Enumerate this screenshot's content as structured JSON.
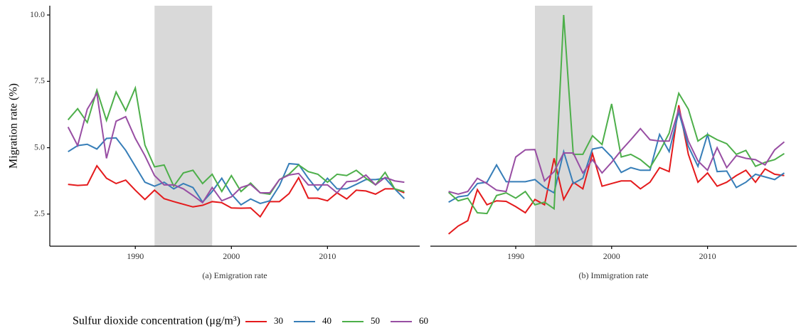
{
  "chart_data": [
    {
      "type": "line",
      "x_label": "(a) Emigration rate",
      "y_label": "Migration rate (%)",
      "legend_title": "Sulfur dioxide concentration (μg/m³)",
      "x": [
        1983,
        1984,
        1985,
        1986,
        1987,
        1988,
        1989,
        1990,
        1991,
        1992,
        1993,
        1994,
        1995,
        1996,
        1997,
        1998,
        1999,
        2000,
        2001,
        2002,
        2003,
        2004,
        2005,
        2006,
        2007,
        2008,
        2009,
        2010,
        2011,
        2012,
        2013,
        2014,
        2015,
        2016,
        2017,
        2018
      ],
      "xlim": [
        1981.1,
        2019.6
      ],
      "xticks": [
        1990,
        2000,
        2010
      ],
      "ylim": [
        1.29,
        10.35
      ],
      "yticks": [
        2.5,
        {
          "value": 5,
          "label": "5.0"
        },
        7.5,
        {
          "value": 10,
          "label": "10.0"
        }
      ],
      "shaded_span": [
        1992,
        1998
      ],
      "shade_color": "#d9d9d9",
      "series": [
        {
          "name": "30",
          "color": "#e41a1c",
          "values": [
            3.62,
            3.58,
            3.6,
            4.32,
            3.85,
            3.65,
            3.78,
            3.4,
            3.05,
            3.4,
            3.08,
            2.97,
            2.87,
            2.77,
            2.83,
            2.97,
            2.93,
            2.73,
            2.72,
            2.73,
            2.4,
            2.97,
            2.97,
            3.27,
            3.87,
            3.1,
            3.1,
            3.0,
            3.3,
            3.07,
            3.4,
            3.37,
            3.25,
            3.45,
            3.45,
            3.3
          ]
        },
        {
          "name": "40",
          "color": "#377eb8",
          "values": [
            4.85,
            5.08,
            5.13,
            4.95,
            5.35,
            5.37,
            4.9,
            4.3,
            3.7,
            3.55,
            3.7,
            3.45,
            3.65,
            3.5,
            2.95,
            3.35,
            3.85,
            3.25,
            2.85,
            3.07,
            2.9,
            3.0,
            3.57,
            4.4,
            4.37,
            3.85,
            3.4,
            3.85,
            3.45,
            3.45,
            3.62,
            3.8,
            3.8,
            3.85,
            3.45,
            3.08
          ]
        },
        {
          "name": "50",
          "color": "#4daf4a",
          "values": [
            6.05,
            6.47,
            5.95,
            7.17,
            6.03,
            7.1,
            6.4,
            7.25,
            5.1,
            4.28,
            4.35,
            3.55,
            4.05,
            4.15,
            3.65,
            4.0,
            3.35,
            3.95,
            3.35,
            3.67,
            3.3,
            3.25,
            3.8,
            4.0,
            4.35,
            4.1,
            4.0,
            3.7,
            4.0,
            3.95,
            4.15,
            3.85,
            3.6,
            4.07,
            3.45,
            3.35
          ]
        },
        {
          "name": "60",
          "color": "#984ea3",
          "values": [
            5.78,
            5.08,
            6.45,
            7.05,
            4.6,
            6.0,
            6.17,
            5.35,
            4.7,
            3.95,
            3.6,
            3.6,
            3.45,
            3.2,
            2.93,
            3.5,
            3.0,
            3.15,
            3.5,
            3.62,
            3.3,
            3.3,
            3.8,
            3.97,
            4.03,
            3.6,
            3.6,
            3.6,
            3.3,
            3.72,
            3.75,
            3.97,
            3.6,
            3.88,
            3.75,
            3.7
          ]
        }
      ]
    },
    {
      "type": "line",
      "x_label": "(b) Immigration rate",
      "x": [
        1983,
        1984,
        1985,
        1986,
        1987,
        1988,
        1989,
        1990,
        1991,
        1992,
        1993,
        1994,
        1995,
        1996,
        1997,
        1998,
        1999,
        2000,
        2001,
        2002,
        2003,
        2004,
        2005,
        2006,
        2007,
        2008,
        2009,
        2010,
        2011,
        2012,
        2013,
        2014,
        2015,
        2016,
        2017,
        2018
      ],
      "xlim": [
        1981.1,
        2019.3
      ],
      "xticks": [
        1990,
        2000,
        2010
      ],
      "ylim": [
        1.29,
        10.35
      ],
      "shaded_span": [
        1992,
        1998
      ],
      "shade_color": "#d9d9d9",
      "series": [
        {
          "color": "#e41a1c",
          "values": [
            1.75,
            2.05,
            2.25,
            3.42,
            2.85,
            3.0,
            2.98,
            2.78,
            2.55,
            3.05,
            2.85,
            4.6,
            3.05,
            3.7,
            3.45,
            4.78,
            3.55,
            3.65,
            3.75,
            3.75,
            3.45,
            3.7,
            4.25,
            4.1,
            6.6,
            4.75,
            3.7,
            4.05,
            3.55,
            3.7,
            3.95,
            4.15,
            3.7,
            4.2,
            4.0,
            3.95
          ]
        },
        {
          "color": "#377eb8",
          "values": [
            2.95,
            3.15,
            3.2,
            3.65,
            3.7,
            4.35,
            3.72,
            3.72,
            3.72,
            3.8,
            3.5,
            3.3,
            4.85,
            3.65,
            3.85,
            4.95,
            5.02,
            4.65,
            4.07,
            4.25,
            4.15,
            4.15,
            5.5,
            4.85,
            6.35,
            5.05,
            4.3,
            5.5,
            4.1,
            4.12,
            3.5,
            3.7,
            4.0,
            3.9,
            3.8,
            4.05
          ]
        },
        {
          "color": "#4daf4a",
          "values": [
            3.32,
            3.0,
            3.1,
            2.55,
            2.52,
            3.2,
            3.3,
            3.1,
            3.35,
            2.85,
            2.95,
            2.7,
            10.0,
            4.75,
            4.75,
            5.45,
            5.12,
            6.65,
            4.65,
            4.75,
            4.55,
            4.25,
            4.85,
            5.55,
            7.05,
            6.45,
            5.25,
            5.5,
            5.3,
            5.15,
            4.75,
            4.9,
            4.3,
            4.45,
            4.55,
            4.78
          ]
        },
        {
          "color": "#984ea3",
          "values": [
            3.35,
            3.25,
            3.35,
            3.85,
            3.65,
            3.4,
            3.35,
            4.65,
            4.92,
            4.93,
            3.75,
            4.1,
            4.8,
            4.8,
            4.05,
            4.55,
            4.05,
            4.45,
            4.9,
            5.3,
            5.72,
            5.3,
            5.25,
            5.25,
            6.45,
            5.25,
            4.5,
            4.15,
            5.0,
            4.25,
            4.7,
            4.6,
            4.55,
            4.35,
            4.92,
            5.22
          ]
        }
      ]
    }
  ]
}
